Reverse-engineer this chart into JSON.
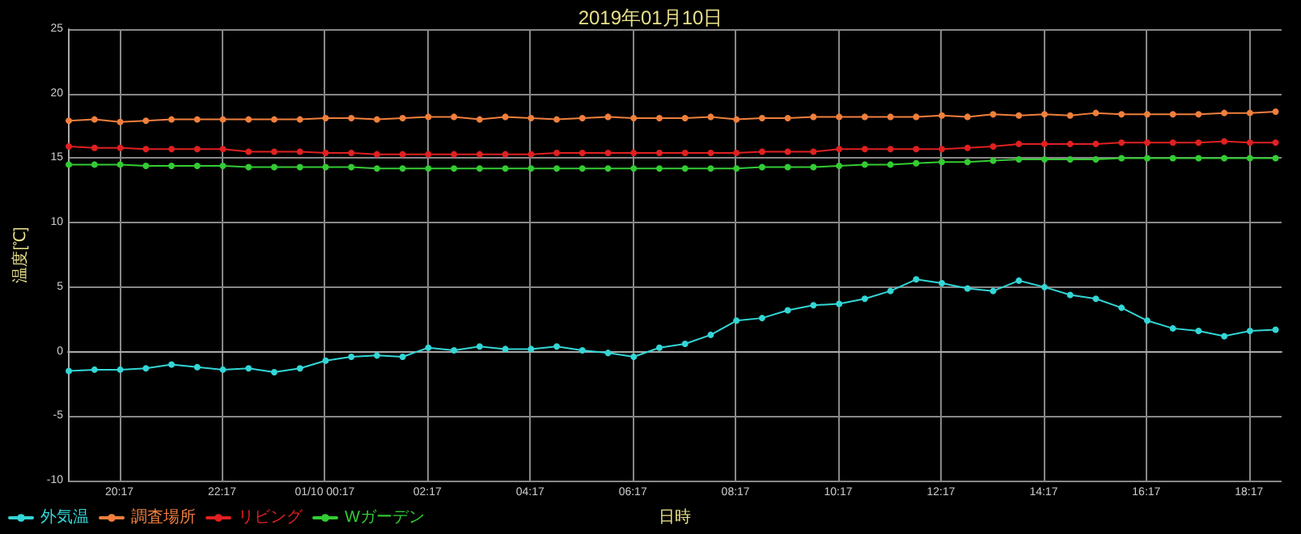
{
  "chart_data": {
    "type": "line",
    "title": "2019年01月10日",
    "xlabel": "日時",
    "ylabel": "温度[℃]",
    "x": [
      "2019-01-09T19:18",
      "2019-01-09T19:48",
      "2019-01-09T20:18",
      "2019-01-09T20:48",
      "2019-01-09T21:18",
      "2019-01-09T21:48",
      "2019-01-09T22:18",
      "2019-01-09T22:48",
      "2019-01-09T23:18",
      "2019-01-09T23:48",
      "2019-01-10T00:18",
      "2019-01-10T00:48",
      "2019-01-10T01:18",
      "2019-01-10T01:48",
      "2019-01-10T02:18",
      "2019-01-10T02:48",
      "2019-01-10T03:18",
      "2019-01-10T03:48",
      "2019-01-10T04:18",
      "2019-01-10T04:48",
      "2019-01-10T05:18",
      "2019-01-10T05:48",
      "2019-01-10T06:18",
      "2019-01-10T06:48",
      "2019-01-10T07:18",
      "2019-01-10T07:48",
      "2019-01-10T08:18",
      "2019-01-10T08:48",
      "2019-01-10T09:18",
      "2019-01-10T09:48",
      "2019-01-10T10:18",
      "2019-01-10T10:48",
      "2019-01-10T11:18",
      "2019-01-10T11:48",
      "2019-01-10T12:18",
      "2019-01-10T12:48",
      "2019-01-10T13:18",
      "2019-01-10T13:48",
      "2019-01-10T14:18",
      "2019-01-10T14:48",
      "2019-01-10T15:18",
      "2019-01-10T15:48",
      "2019-01-10T16:18",
      "2019-01-10T16:48",
      "2019-01-10T17:18",
      "2019-01-10T17:48",
      "2019-01-10T18:18",
      "2019-01-10T18:48"
    ],
    "series": [
      {
        "name": "外気温",
        "color": "#33d6d6",
        "values": [
          -1.5,
          -1.4,
          -1.4,
          -1.3,
          -1.0,
          -1.2,
          -1.4,
          -1.3,
          -1.6,
          -1.3,
          -0.7,
          -0.4,
          -0.3,
          -0.4,
          0.3,
          0.1,
          0.4,
          0.2,
          0.2,
          0.4,
          0.1,
          -0.1,
          -0.4,
          0.3,
          0.6,
          1.3,
          2.4,
          2.6,
          3.2,
          3.6,
          3.7,
          4.1,
          4.7,
          5.6,
          5.3,
          4.9,
          4.7,
          5.5,
          5.0,
          4.4,
          4.1,
          3.4,
          2.4,
          1.8,
          1.6,
          1.2,
          1.6,
          1.7
        ]
      },
      {
        "name": "調査場所",
        "color": "#f07f3c",
        "values": [
          17.9,
          18.0,
          17.8,
          17.9,
          18.0,
          18.0,
          18.0,
          18.0,
          18.0,
          18.0,
          18.1,
          18.1,
          18.0,
          18.1,
          18.2,
          18.2,
          18.0,
          18.2,
          18.1,
          18.0,
          18.1,
          18.2,
          18.1,
          18.1,
          18.1,
          18.2,
          18.0,
          18.1,
          18.1,
          18.2,
          18.2,
          18.2,
          18.2,
          18.2,
          18.3,
          18.2,
          18.4,
          18.3,
          18.4,
          18.3,
          18.5,
          18.4,
          18.4,
          18.4,
          18.4,
          18.5,
          18.5,
          18.6
        ]
      },
      {
        "name": "リビング",
        "color": "#e02020",
        "values": [
          15.9,
          15.8,
          15.8,
          15.7,
          15.7,
          15.7,
          15.7,
          15.5,
          15.5,
          15.5,
          15.4,
          15.4,
          15.3,
          15.3,
          15.3,
          15.3,
          15.3,
          15.3,
          15.3,
          15.4,
          15.4,
          15.4,
          15.4,
          15.4,
          15.4,
          15.4,
          15.4,
          15.5,
          15.5,
          15.5,
          15.7,
          15.7,
          15.7,
          15.7,
          15.7,
          15.8,
          15.9,
          16.1,
          16.1,
          16.1,
          16.1,
          16.2,
          16.2,
          16.2,
          16.2,
          16.3,
          16.2,
          16.2
        ]
      },
      {
        "name": "Wガーデン",
        "color": "#33cc33",
        "values": [
          14.5,
          14.5,
          14.5,
          14.4,
          14.4,
          14.4,
          14.4,
          14.3,
          14.3,
          14.3,
          14.3,
          14.3,
          14.2,
          14.2,
          14.2,
          14.2,
          14.2,
          14.2,
          14.2,
          14.2,
          14.2,
          14.2,
          14.2,
          14.2,
          14.2,
          14.2,
          14.2,
          14.3,
          14.3,
          14.3,
          14.4,
          14.5,
          14.5,
          14.6,
          14.7,
          14.7,
          14.8,
          14.9,
          14.9,
          14.9,
          14.9,
          15.0,
          15.0,
          15.0,
          15.0,
          15.0,
          15.0,
          15.0
        ]
      }
    ],
    "xlim": [
      "2019-01-09T19:17",
      "2019-01-10T18:55"
    ],
    "xticks": [
      {
        "value": "2019-01-09T20:17",
        "label": "20:17"
      },
      {
        "value": "2019-01-09T22:17",
        "label": "22:17"
      },
      {
        "value": "2019-01-10T00:17",
        "label": "01/10 00:17"
      },
      {
        "value": "2019-01-10T02:17",
        "label": "02:17"
      },
      {
        "value": "2019-01-10T04:17",
        "label": "04:17"
      },
      {
        "value": "2019-01-10T06:17",
        "label": "06:17"
      },
      {
        "value": "2019-01-10T08:17",
        "label": "08:17"
      },
      {
        "value": "2019-01-10T10:17",
        "label": "10:17"
      },
      {
        "value": "2019-01-10T12:17",
        "label": "12:17"
      },
      {
        "value": "2019-01-10T14:17",
        "label": "14:17"
      },
      {
        "value": "2019-01-10T16:17",
        "label": "16:17"
      },
      {
        "value": "2019-01-10T18:17",
        "label": "18:17"
      }
    ],
    "ylim": [
      -10,
      25
    ],
    "yticks": [
      -10,
      -5,
      0,
      5,
      10,
      15,
      20,
      25
    ],
    "grid": true,
    "legend": "bottom left",
    "marker": "circle",
    "line_style": "solid"
  }
}
